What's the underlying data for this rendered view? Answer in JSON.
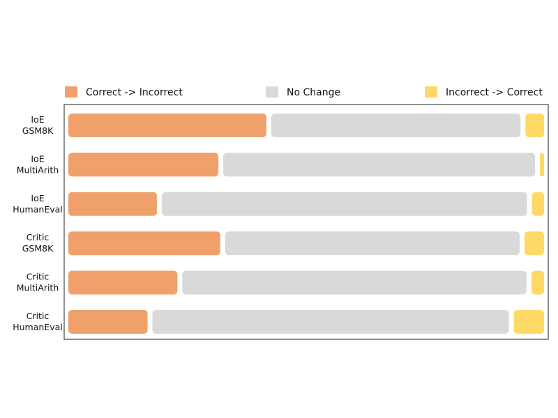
{
  "chart_data": {
    "type": "bar",
    "orientation": "horizontal",
    "stacked": true,
    "title": "",
    "xlabel": "",
    "ylabel": "",
    "xlim": [
      0,
      100
    ],
    "grid": false,
    "legend_position": "top",
    "categories": [
      "IoE\nGSM8K",
      "IoE\nMultiArith",
      "IoE\nHumanEval",
      "Critic\nGSM8K",
      "Critic\nMultiArith",
      "Critic\nHumanEval"
    ],
    "series": [
      {
        "name": "Correct -> Incorrect",
        "color": "#f0a06a",
        "values": [
          42.5,
          32.2,
          19.0,
          32.6,
          23.4,
          17.0
        ]
      },
      {
        "name": "No Change",
        "color": "#d9d9d9",
        "values": [
          53.5,
          66.9,
          78.4,
          63.2,
          73.9,
          76.5
        ]
      },
      {
        "name": "Incorrect -> Correct",
        "color": "#ffd966",
        "values": [
          4.0,
          0.9,
          2.6,
          4.2,
          2.7,
          6.5
        ]
      }
    ]
  }
}
